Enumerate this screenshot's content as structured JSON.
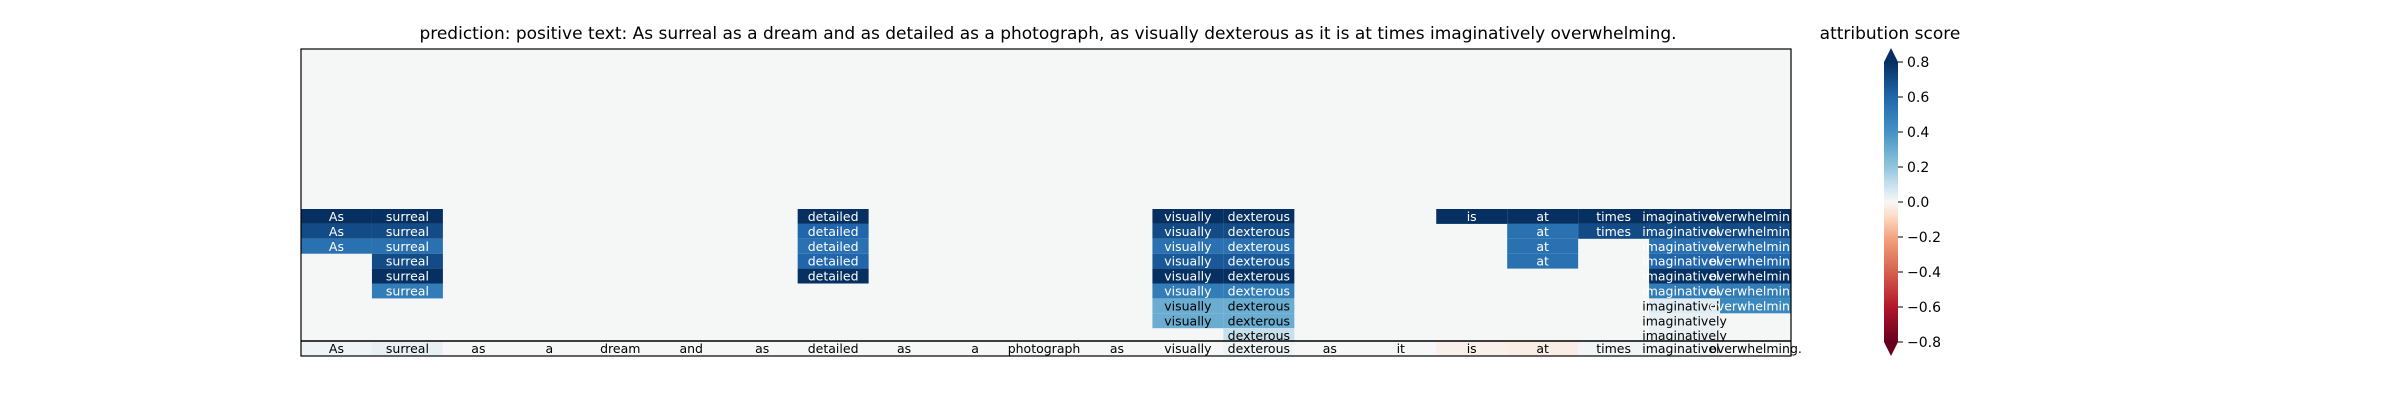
{
  "chart_data": {
    "type": "heatmap",
    "title": "prediction:  positive     text:  As surreal as a dream and as detailed as a photograph, as visually dexterous as it is at times imaginatively overwhelming.",
    "colorbar_label": "attribution score",
    "colorbar_ticks": [
      "0.8",
      "0.6",
      "0.4",
      "0.2",
      "0.0",
      "−0.2",
      "−0.4",
      "−0.6",
      "−0.8"
    ],
    "colorbar_range": [
      -0.8,
      0.8
    ],
    "colormap": "RdBu",
    "tokens": [
      "As",
      "surreal",
      "as",
      "a",
      "dream",
      "and",
      "as",
      "detailed",
      "as",
      "a",
      "photograph,",
      "as",
      "visually",
      "dexterous",
      "as",
      "it",
      "is",
      "at",
      "times",
      "imaginatively",
      "overwhelming."
    ],
    "token_scores": [
      0.02,
      0.03,
      0.0,
      0.0,
      0.0,
      0.0,
      0.0,
      0.0,
      0.0,
      0.0,
      0.0,
      0.0,
      0.0,
      0.02,
      0.0,
      0.0,
      -0.02,
      -0.03,
      0.01,
      0.01,
      0.0
    ],
    "spans": [
      {
        "col": 0,
        "row": 0,
        "text": "As",
        "score": 0.85
      },
      {
        "col": 0,
        "row": 1,
        "text": "As",
        "score": 0.7
      },
      {
        "col": 0,
        "row": 2,
        "text": "As",
        "score": 0.55
      },
      {
        "col": 1,
        "row": 0,
        "text": "surreal",
        "score": 0.85
      },
      {
        "col": 1,
        "row": 1,
        "text": "surreal",
        "score": 0.7
      },
      {
        "col": 1,
        "row": 2,
        "text": "surreal",
        "score": 0.55
      },
      {
        "col": 1,
        "row": 3,
        "text": "surreal",
        "score": 0.7
      },
      {
        "col": 1,
        "row": 4,
        "text": "surreal",
        "score": 0.85
      },
      {
        "col": 1,
        "row": 5,
        "text": "surreal",
        "score": 0.5
      },
      {
        "col": 7,
        "row": 0,
        "text": "detailed",
        "score": 0.85
      },
      {
        "col": 7,
        "row": 1,
        "text": "detailed",
        "score": 0.6
      },
      {
        "col": 7,
        "row": 2,
        "text": "detailed",
        "score": 0.55
      },
      {
        "col": 7,
        "row": 3,
        "text": "detailed",
        "score": 0.6
      },
      {
        "col": 7,
        "row": 4,
        "text": "detailed",
        "score": 0.85
      },
      {
        "col": 12,
        "row": 0,
        "text": "visually",
        "score": 0.85
      },
      {
        "col": 12,
        "row": 1,
        "text": "visually",
        "score": 0.7
      },
      {
        "col": 12,
        "row": 2,
        "text": "visually",
        "score": 0.55
      },
      {
        "col": 12,
        "row": 3,
        "text": "visually",
        "score": 0.65
      },
      {
        "col": 12,
        "row": 4,
        "text": "visually",
        "score": 0.85
      },
      {
        "col": 12,
        "row": 5,
        "text": "visually",
        "score": 0.5
      },
      {
        "col": 12,
        "row": 6,
        "text": "visually",
        "score": 0.3
      },
      {
        "col": 12,
        "row": 7,
        "text": "visually",
        "score": 0.3
      },
      {
        "col": 13,
        "row": 0,
        "text": "dexterous",
        "score": 0.85
      },
      {
        "col": 13,
        "row": 1,
        "text": "dexterous",
        "score": 0.7
      },
      {
        "col": 13,
        "row": 2,
        "text": "dexterous",
        "score": 0.55
      },
      {
        "col": 13,
        "row": 3,
        "text": "dexterous",
        "score": 0.65
      },
      {
        "col": 13,
        "row": 4,
        "text": "dexterous",
        "score": 0.85
      },
      {
        "col": 13,
        "row": 5,
        "text": "dexterous",
        "score": 0.5
      },
      {
        "col": 13,
        "row": 6,
        "text": "dexterous",
        "score": 0.3
      },
      {
        "col": 13,
        "row": 7,
        "text": "dexterous",
        "score": 0.3
      },
      {
        "col": 13,
        "row": 8,
        "text": "dexterous",
        "score": 0.1
      },
      {
        "col": 16,
        "row": 0,
        "text": "is",
        "score": 0.85
      },
      {
        "col": 17,
        "row": 0,
        "text": "at",
        "score": 0.85
      },
      {
        "col": 17,
        "row": 1,
        "text": "at",
        "score": 0.55
      },
      {
        "col": 17,
        "row": 2,
        "text": "at",
        "score": 0.55
      },
      {
        "col": 17,
        "row": 3,
        "text": "at",
        "score": 0.55
      },
      {
        "col": 18,
        "row": 0,
        "text": "times",
        "score": 0.85
      },
      {
        "col": 18,
        "row": 1,
        "text": "times",
        "score": 0.7
      },
      {
        "col": 19,
        "row": 0,
        "text": "imaginatively",
        "score": 0.85
      },
      {
        "col": 19,
        "row": 1,
        "text": "imaginatively",
        "score": 0.7
      },
      {
        "col": 19,
        "row": 2,
        "text": "imaginatively",
        "score": 0.55
      },
      {
        "col": 19,
        "row": 3,
        "text": "imaginatively",
        "score": 0.6
      },
      {
        "col": 19,
        "row": 4,
        "text": "imaginatively",
        "score": 0.85
      },
      {
        "col": 19,
        "row": 5,
        "text": "imaginatively",
        "score": 0.5
      },
      {
        "col": 19,
        "row": 6,
        "text": "imaginatively",
        "score": 0.05
      },
      {
        "col": 19,
        "row": 7,
        "text": "imaginatively",
        "score": 0.03
      },
      {
        "col": 19,
        "row": 8,
        "text": "imaginatively",
        "score": 0.03
      },
      {
        "col": 20,
        "row": 0,
        "text": "overwhelming.",
        "score": 0.85
      },
      {
        "col": 20,
        "row": 1,
        "text": "overwhelming.",
        "score": 0.7
      },
      {
        "col": 20,
        "row": 2,
        "text": "overwhelming.",
        "score": 0.55
      },
      {
        "col": 20,
        "row": 3,
        "text": "overwhelming.",
        "score": 0.6
      },
      {
        "col": 20,
        "row": 4,
        "text": "overwhelming.",
        "score": 0.85
      },
      {
        "col": 20,
        "row": 5,
        "text": "overwhelming.",
        "score": 0.5
      },
      {
        "col": 20,
        "row": 6,
        "text": "overwhelming.",
        "score": 0.45
      }
    ]
  }
}
